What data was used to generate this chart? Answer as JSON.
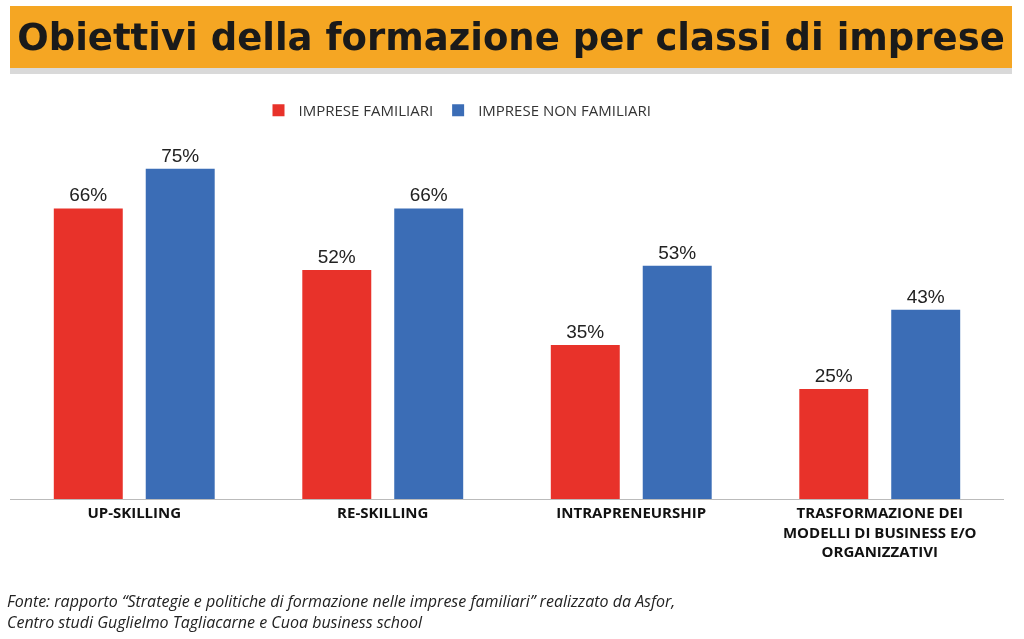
{
  "chart_data": {
    "type": "bar",
    "title": "Obiettivi della formazione per classi di imprese",
    "categories": [
      "UP-SKILLING",
      "RE-SKILLING",
      "INTRAPRENEURSHIP",
      "TRASFORMAZIONE DEI MODELLI DI BUSINESS E/O ORGANIZZATIVI"
    ],
    "series": [
      {
        "name": "IMPRESE FAMILIARI",
        "color": "#e8322a",
        "values": [
          66,
          52,
          35,
          25
        ],
        "value_labels": [
          "66%",
          "52%",
          "35%",
          "25%"
        ]
      },
      {
        "name": "IMPRESE NON FAMILIARI",
        "color": "#3b6db6",
        "values": [
          75,
          66,
          53,
          43
        ],
        "value_labels": [
          "75%",
          "66%",
          "53%",
          "43%"
        ]
      }
    ],
    "legend": "top",
    "annotations": [
      "Fonte: rapporto “Strategie e politiche di formazione nelle imprese familiari” realizzato da Asfor, Centro studi Guglielmo Tagliacarne e Cuoa business school"
    ]
  }
}
